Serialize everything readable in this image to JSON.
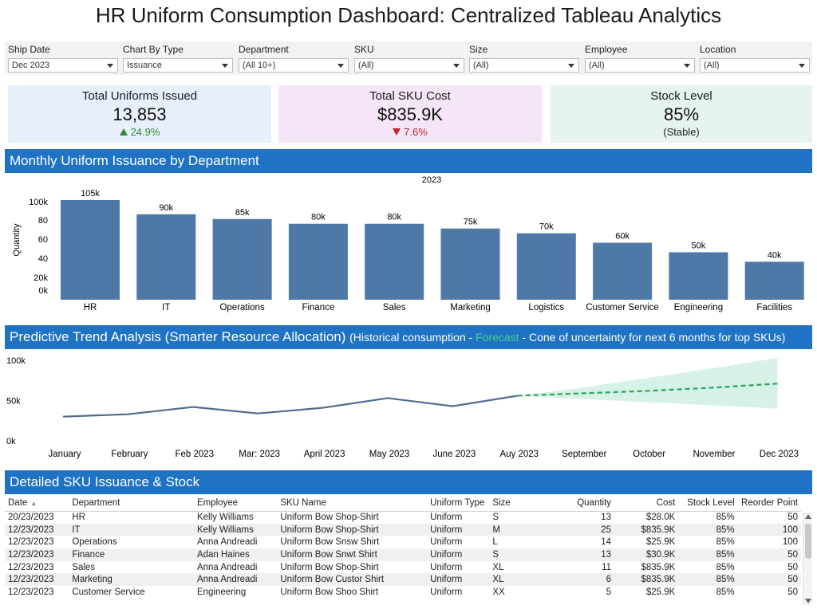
{
  "title": "HR Uniform Consumption Dashboard: Centralized Tableau Analytics",
  "filters": [
    {
      "label": "Ship Date",
      "value": "Dec 2023"
    },
    {
      "label": "Chart By Type",
      "value": "Issuance"
    },
    {
      "label": "Department",
      "value": "(All 10+)"
    },
    {
      "label": "SKU",
      "value": "(All)"
    },
    {
      "label": "Size",
      "value": "(All)"
    },
    {
      "label": "Employee",
      "value": "(All)"
    },
    {
      "label": "Location",
      "value": "(All)"
    }
  ],
  "kpis": {
    "uniforms": {
      "label": "Total Uniforms Issued",
      "value": "13,853",
      "delta": "24.9%",
      "bg": "#e7effb"
    },
    "cost": {
      "label": "Total SKU Cost",
      "value": "$835.9K",
      "delta": "7.6%",
      "bg": "#f5e6f7"
    },
    "stock": {
      "label": "Stock Level",
      "value": "85%",
      "note": "(Stable)",
      "bg": "#e6f4ee"
    }
  },
  "sections": {
    "monthly": "Monthly Uniform Issuance by Department",
    "trend_main": "Predictive Trend Analysis (Smarter Resource Allocation)",
    "trend_sub_a": "(Historical consumption - ",
    "trend_sub_forecast": "Forecast",
    "trend_sub_b": " - Cone of uncertainty for next 6 months for top SKUs)",
    "table": "Detailed SKU Issuance & Stock"
  },
  "chart_data": [
    {
      "type": "bar",
      "title": "2023",
      "ylabel": "Quantity",
      "categories": [
        "HR",
        "IT",
        "Operations",
        "Finance",
        "Sales",
        "Marketing",
        "Logistics",
        "Customer Service",
        "Engineering",
        "Facilities"
      ],
      "values": [
        105,
        90,
        85,
        80,
        80,
        75,
        70,
        60,
        50,
        40
      ],
      "data_labels": [
        "105k",
        "90k",
        "85k",
        "80k",
        "80k",
        "75k",
        "70k",
        "60k",
        "50k",
        "40k"
      ],
      "y_ticks": [
        "100k",
        "80",
        "60",
        "40",
        "20k",
        "0k"
      ],
      "color": "#4e79a7",
      "grid": false
    },
    {
      "type": "line",
      "x": [
        "January",
        "February",
        "Feb 2023",
        "Mar: 2023",
        "April 2023",
        "May 2023",
        "June 2023",
        "Auy 2023",
        "September",
        "October",
        "November",
        "Dec 2023"
      ],
      "y_ticks": [
        "100k",
        "50k",
        "0k"
      ],
      "ylim": [
        0,
        100
      ],
      "series": [
        {
          "values": [
            30,
            33,
            42,
            34,
            41,
            53,
            43,
            56,
            null,
            null,
            null,
            null
          ],
          "color": "#4f6a8f"
        },
        {
          "values": [
            null,
            null,
            null,
            null,
            null,
            null,
            null,
            56,
            59,
            62,
            66,
            71
          ],
          "color": "#2fa365",
          "dashed": true
        },
        {
          "lower": [
            null,
            null,
            null,
            null,
            null,
            null,
            null,
            56,
            52,
            48,
            44,
            40
          ],
          "upper": [
            null,
            null,
            null,
            null,
            null,
            null,
            null,
            56,
            66,
            78,
            90,
            103
          ],
          "color": "#cfeee0"
        }
      ],
      "grid": false
    }
  ],
  "table": {
    "columns": [
      "Date",
      "Department",
      "Employee",
      "SKU Name",
      "Uniform Type",
      "Size",
      "Quantity",
      "Cost",
      "Stock Level",
      "Reorder Point"
    ],
    "sort_indicator": "▲",
    "rows": [
      [
        "20/23/2023",
        "HR",
        "Kelly Williams",
        "Uniform Bow Shop-Shirt",
        "Uniform",
        "S",
        "13",
        "$28.0K",
        "85%",
        "50"
      ],
      [
        "12/23/2023",
        "IT",
        "Kelly Williams",
        "Uniform Bow Shop-Shirt",
        "Uniform",
        "M",
        "25",
        "$835.9K",
        "85%",
        "100"
      ],
      [
        "12/23/2023",
        "Operations",
        "Anna Andreadi",
        "Uniform Bow Snsw Shirt",
        "Uniform",
        "L",
        "14",
        "$25.9K",
        "85%",
        "100"
      ],
      [
        "12/23/2023",
        "Finance",
        "Adan Haines",
        "Uniform Bow Snwt Shirt",
        "Uniform",
        "S",
        "13",
        "$30.9K",
        "85%",
        "50"
      ],
      [
        "12/23/2023",
        "Sales",
        "Anna Andreadi",
        "Uniform Bow Shop-Shirt",
        "Uniform",
        "XL",
        "11",
        "$835.9K",
        "85%",
        "50"
      ],
      [
        "12/23/2023",
        "Marketing",
        "Anna Andreadi",
        "Uniform Bow Custor Shirt",
        "Uniform",
        "XL",
        "6",
        "$835.9K",
        "85%",
        "50"
      ],
      [
        "12/23/2023",
        "Customer Service",
        "Engineering",
        "Uniform Bow Shoo Shirt",
        "Uniform",
        "XX",
        "5",
        "$25.9K",
        "85%",
        "50"
      ]
    ]
  }
}
